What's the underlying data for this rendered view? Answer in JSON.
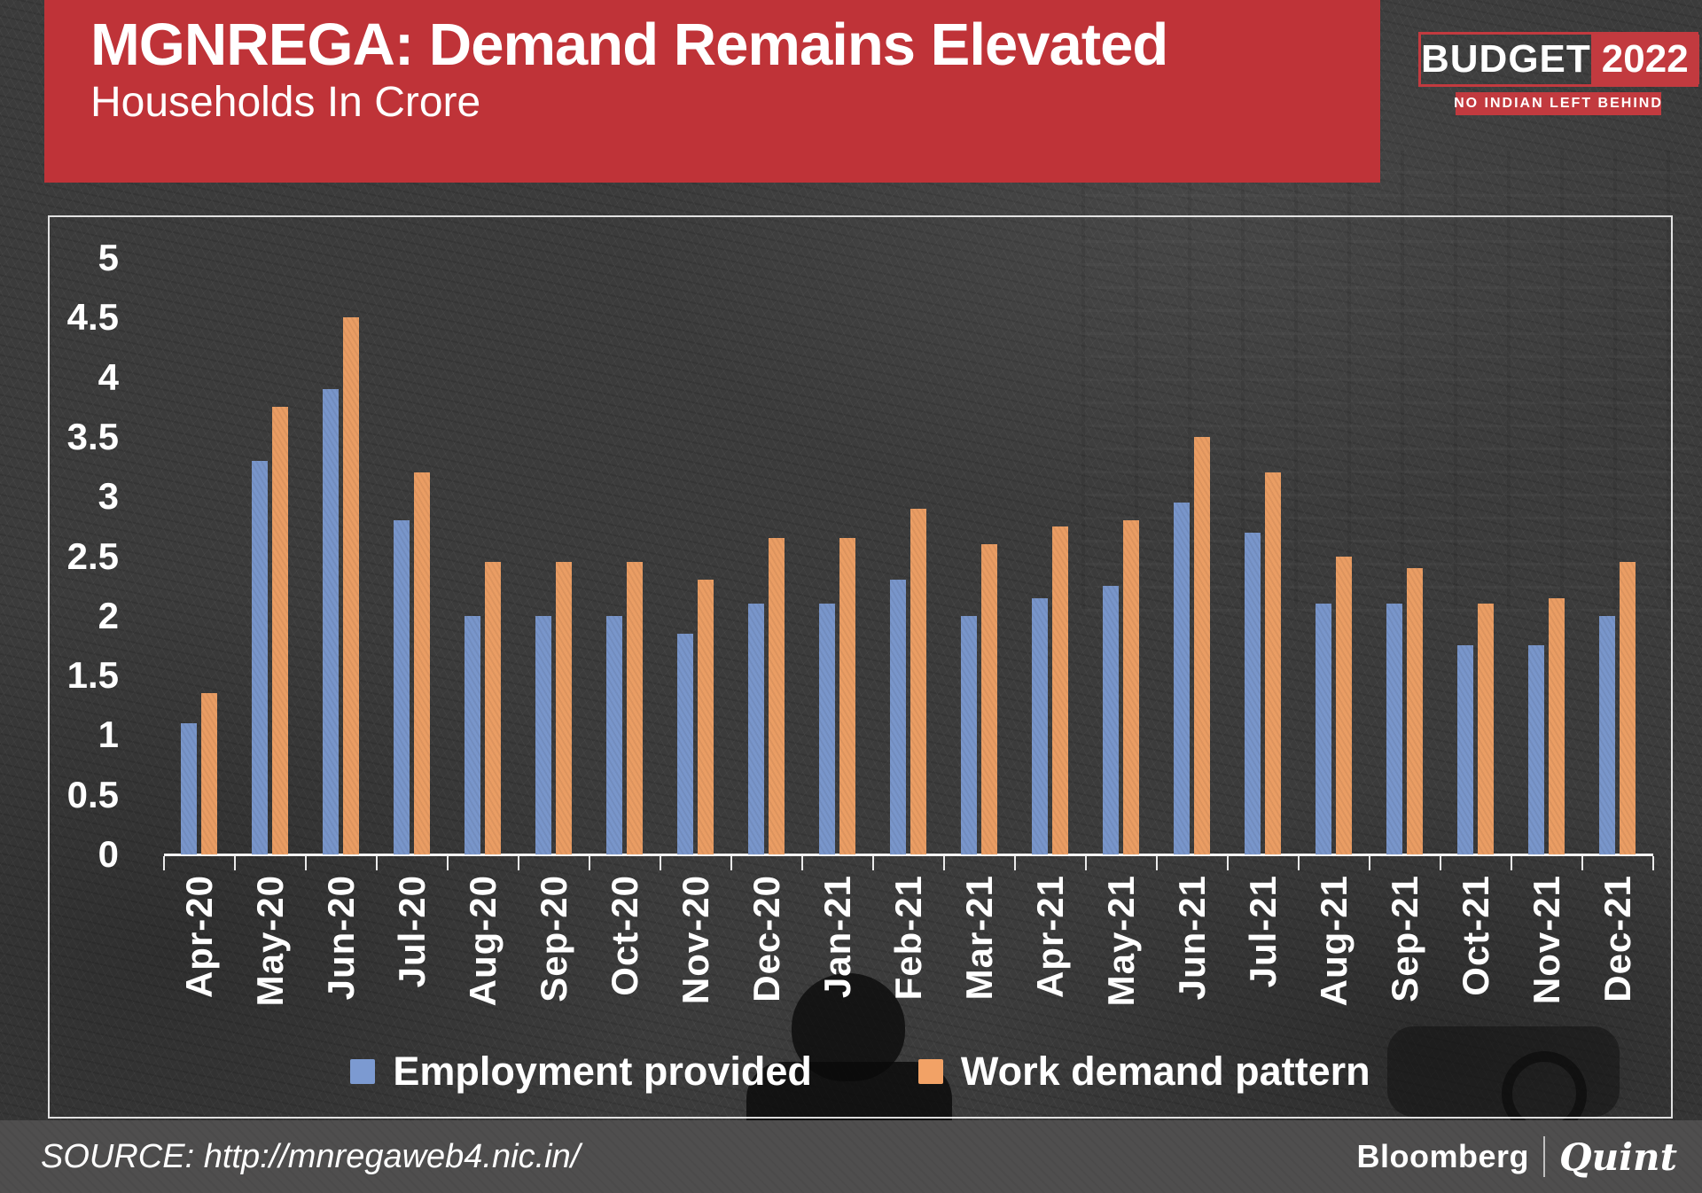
{
  "header": {
    "title": "MGNREGA: Demand Remains Elevated",
    "subtitle": "Households In Crore",
    "bg_color": "#bf3338"
  },
  "budget_logo": {
    "word": "BUDGET",
    "year": "2022",
    "tagline": "NO INDIAN LEFT BEHIND",
    "accent_color": "#c23a3f"
  },
  "chart_data": {
    "type": "bar",
    "title": "MGNREGA: Demand Remains Elevated",
    "units_label": "Households In Crore",
    "categories": [
      "Apr-20",
      "May-20",
      "Jun-20",
      "Jul-20",
      "Aug-20",
      "Sep-20",
      "Oct-20",
      "Nov-20",
      "Dec-20",
      "Jan-21",
      "Feb-21",
      "Mar-21",
      "Apr-21",
      "May-21",
      "Jun-21",
      "Jul-21",
      "Aug-21",
      "Sep-21",
      "Oct-21",
      "Nov-21",
      "Dec-21"
    ],
    "series": [
      {
        "name": "Employment provided",
        "color": "#7c9ad1",
        "values": [
          1.1,
          3.3,
          3.9,
          2.8,
          2.0,
          2.0,
          2.0,
          1.85,
          2.1,
          2.1,
          2.3,
          2.0,
          2.15,
          2.25,
          2.95,
          2.7,
          2.1,
          2.1,
          1.75,
          1.75,
          2.0
        ]
      },
      {
        "name": "Work demand pattern",
        "color": "#f2a266",
        "values": [
          1.35,
          3.75,
          4.5,
          3.2,
          2.45,
          2.45,
          2.45,
          2.3,
          2.65,
          2.65,
          2.9,
          2.6,
          2.75,
          2.8,
          3.5,
          3.2,
          2.5,
          2.4,
          2.1,
          2.15,
          2.45
        ]
      }
    ],
    "ylim": [
      0,
      5
    ],
    "ytick_step": 0.5,
    "yticks": [
      "5",
      "4.5",
      "4",
      "3.5",
      "3",
      "2.5",
      "2",
      "1.5",
      "1",
      "0.5",
      "0"
    ],
    "grid": false,
    "legend_position": "bottom"
  },
  "footer": {
    "source": "SOURCE: http://mnregaweb4.nic.in/",
    "brand_left": "Bloomberg",
    "brand_right": "Quint"
  }
}
